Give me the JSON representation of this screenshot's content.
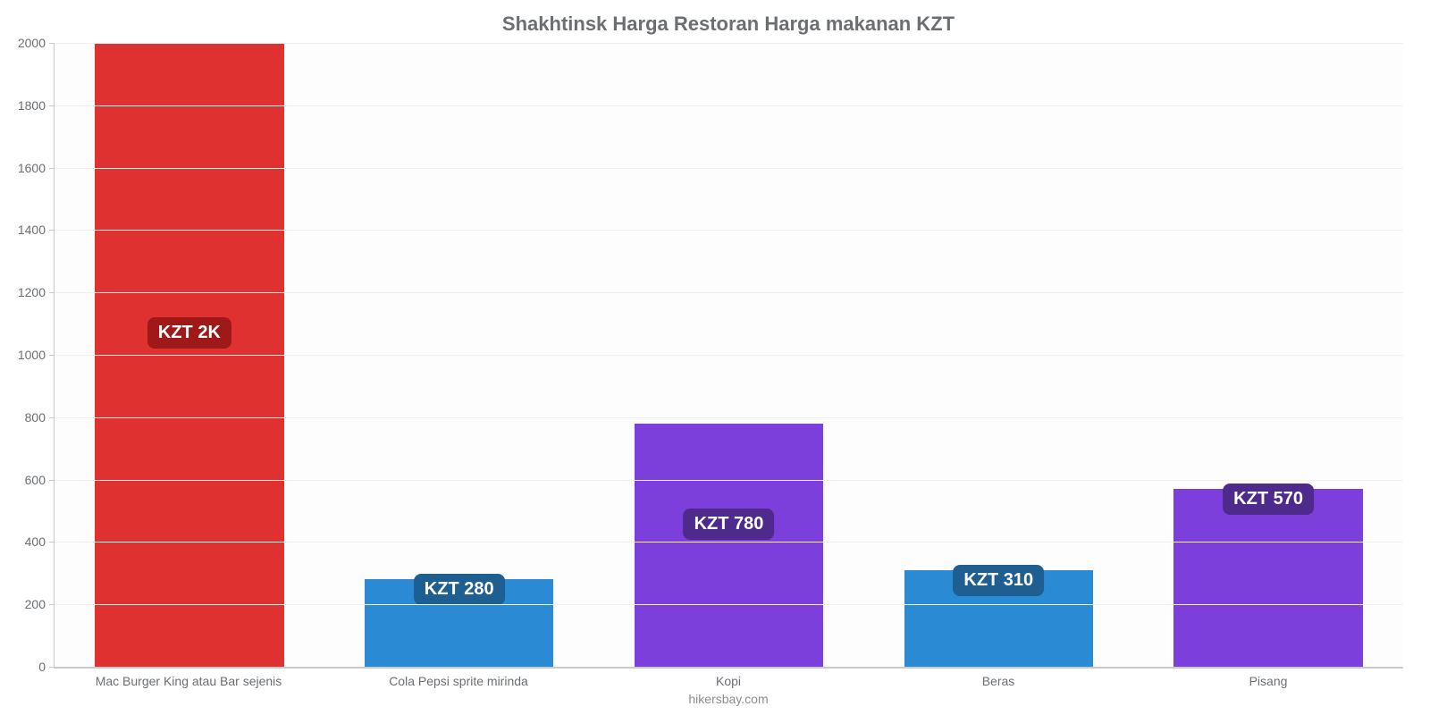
{
  "chart": {
    "type": "bar",
    "title": "Shakhtinsk Harga Restoran Harga makanan KZT",
    "title_fontsize": 22,
    "title_color": "#6b6f73",
    "background_color": "#fdfdfd",
    "grid_color": "#f0f0f0",
    "axis_color": "#c9c9c9",
    "tick_label_color": "#6b6f73",
    "tick_label_fontsize": 14,
    "bar_width": 0.7,
    "ylim": [
      0,
      2000
    ],
    "ytick_step": 200,
    "yticks": [
      0,
      200,
      400,
      600,
      800,
      1000,
      1200,
      1400,
      1600,
      1800,
      2000
    ],
    "categories": [
      "Mac Burger King atau Bar sejenis",
      "Cola Pepsi sprite mirinda",
      "Kopi",
      "Beras",
      "Pisang"
    ],
    "values": [
      2000,
      280,
      780,
      310,
      570
    ],
    "bar_colors": [
      "#e03131",
      "#2a8ad4",
      "#7d3fdc",
      "#2a8ad4",
      "#7d3fdc"
    ],
    "value_labels": [
      "KZT 2K",
      "KZT 280",
      "KZT 780",
      "KZT 310",
      "KZT 570"
    ],
    "value_label_bg": [
      "#a01919",
      "#1e5e90",
      "#4f2a8d",
      "#1e5e90",
      "#4f2a8d"
    ],
    "value_label_colors": [
      "#ffffff",
      "#ffffff",
      "#ffffff",
      "#ffffff",
      "#ffffff"
    ],
    "value_label_fontsize": 20,
    "credit": "hikersbay.com",
    "credit_color": "#8a8e92"
  }
}
